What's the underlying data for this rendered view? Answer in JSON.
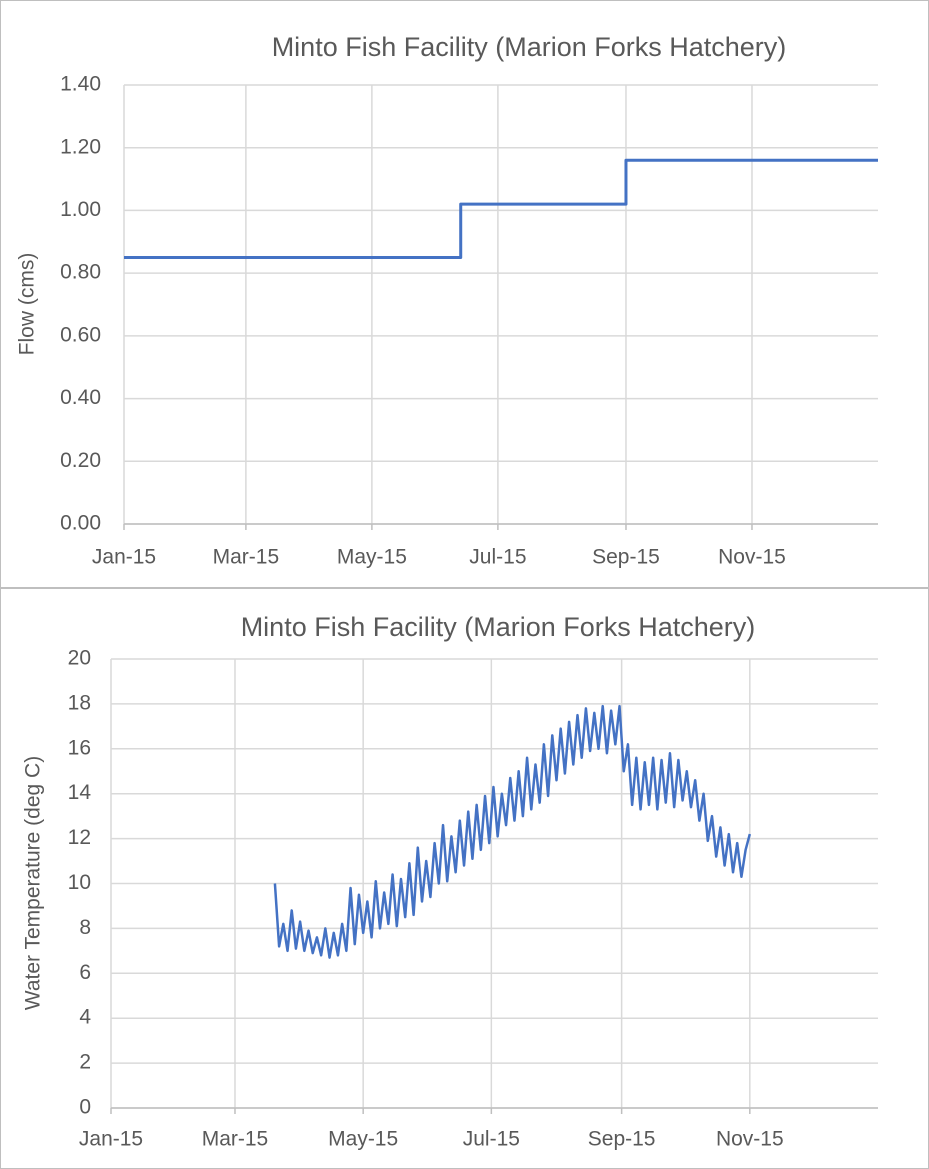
{
  "chart_data": [
    {
      "type": "line",
      "title": "Minto Fish Facility (Marion Forks Hatchery)",
      "y_label": "Flow (cms)",
      "x": [
        0,
        163,
        163,
        243,
        243,
        365
      ],
      "series": [
        {
          "name": "Flow",
          "color": "#4472c4",
          "values": [
            0.85,
            0.85,
            1.02,
            1.02,
            1.16,
            1.16
          ]
        }
      ],
      "xlim": [
        0,
        365
      ],
      "xticks": [
        {
          "value": 0,
          "label": "Jan-15"
        },
        {
          "value": 59,
          "label": "Mar-15"
        },
        {
          "value": 120,
          "label": "May-15"
        },
        {
          "value": 181,
          "label": "Jul-15"
        },
        {
          "value": 243,
          "label": "Sep-15"
        },
        {
          "value": 304,
          "label": "Nov-15"
        }
      ],
      "ylim": [
        0,
        1.4
      ],
      "yticks": [
        {
          "value": 0,
          "label": "0.00"
        },
        {
          "value": 0.2,
          "label": "0.20"
        },
        {
          "value": 0.4,
          "label": "0.40"
        },
        {
          "value": 0.6,
          "label": "0.60"
        },
        {
          "value": 0.8,
          "label": "0.80"
        },
        {
          "value": 1,
          "label": "1.00"
        },
        {
          "value": 1.2,
          "label": "1.20"
        },
        {
          "value": 1.4,
          "label": "1.40"
        }
      ],
      "grid": true
    },
    {
      "type": "line",
      "title": "Minto Fish Facility (Marion Forks Hatchery)",
      "y_label": "Water Temperature (deg C)",
      "x": [
        78,
        80,
        82,
        84,
        86,
        88,
        90,
        92,
        94,
        96,
        98,
        100,
        102,
        104,
        106,
        108,
        110,
        112,
        114,
        116,
        118,
        120,
        122,
        124,
        126,
        128,
        130,
        132,
        134,
        136,
        138,
        140,
        142,
        144,
        146,
        148,
        150,
        152,
        154,
        156,
        158,
        160,
        162,
        164,
        166,
        168,
        170,
        172,
        174,
        176,
        178,
        180,
        182,
        184,
        186,
        188,
        190,
        192,
        194,
        196,
        198,
        200,
        202,
        204,
        206,
        208,
        210,
        212,
        214,
        216,
        218,
        220,
        222,
        224,
        226,
        228,
        230,
        232,
        234,
        236,
        238,
        240,
        242,
        244,
        246,
        248,
        250,
        252,
        254,
        256,
        258,
        260,
        262,
        264,
        266,
        268,
        270,
        272,
        274,
        276,
        278,
        280,
        282,
        284,
        286,
        288,
        290,
        292,
        294,
        296,
        298,
        300,
        302,
        304
      ],
      "series": [
        {
          "name": "Water Temperature",
          "color": "#4472c4",
          "values": [
            10.0,
            7.2,
            8.2,
            7.0,
            8.8,
            7.1,
            8.3,
            7.0,
            7.9,
            6.9,
            7.6,
            6.8,
            8.0,
            6.7,
            7.8,
            6.8,
            8.2,
            7.0,
            9.8,
            7.3,
            9.5,
            7.8,
            9.2,
            7.6,
            10.1,
            8.0,
            9.6,
            8.2,
            10.4,
            8.1,
            10.2,
            8.5,
            10.9,
            8.6,
            11.6,
            9.2,
            11.0,
            9.4,
            11.8,
            10.0,
            12.6,
            10.1,
            12.1,
            10.5,
            12.8,
            10.8,
            13.2,
            11.1,
            13.5,
            11.5,
            13.9,
            11.8,
            14.3,
            12.1,
            14.0,
            12.6,
            14.7,
            12.8,
            15.0,
            13.0,
            15.6,
            13.3,
            15.3,
            13.6,
            16.2,
            13.9,
            16.6,
            14.6,
            16.9,
            14.9,
            17.2,
            15.3,
            17.5,
            15.6,
            17.8,
            15.9,
            17.6,
            16.0,
            17.9,
            15.8,
            17.7,
            16.2,
            17.9,
            15.0,
            16.2,
            13.5,
            15.6,
            13.3,
            15.4,
            13.5,
            15.6,
            13.3,
            15.5,
            13.6,
            15.8,
            13.4,
            15.5,
            13.7,
            15.0,
            13.4,
            14.6,
            12.8,
            14.0,
            11.9,
            13.0,
            11.2,
            12.5,
            10.8,
            12.2,
            10.5,
            11.8,
            10.3,
            11.5,
            12.2
          ]
        }
      ],
      "xlim": [
        0,
        365
      ],
      "xticks": [
        {
          "value": 0,
          "label": "Jan-15"
        },
        {
          "value": 59,
          "label": "Mar-15"
        },
        {
          "value": 120,
          "label": "May-15"
        },
        {
          "value": 181,
          "label": "Jul-15"
        },
        {
          "value": 243,
          "label": "Sep-15"
        },
        {
          "value": 304,
          "label": "Nov-15"
        }
      ],
      "ylim": [
        0,
        20
      ],
      "yticks": [
        0,
        2,
        4,
        6,
        8,
        10,
        12,
        14,
        16,
        18,
        20
      ],
      "grid": true
    }
  ]
}
